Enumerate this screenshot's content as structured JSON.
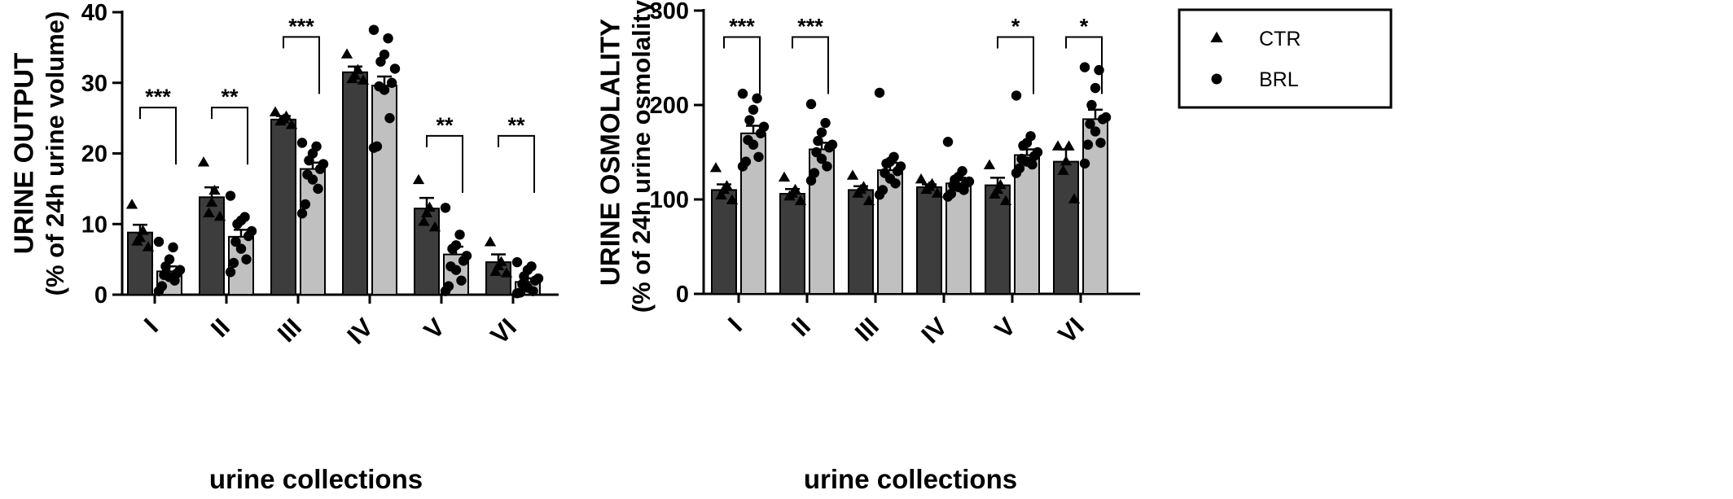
{
  "colors": {
    "ctr_bar": "#3d3d3d",
    "brl_bar": "#c0c0c0",
    "point": "#000000"
  },
  "legend": {
    "items": [
      {
        "label": "CTR",
        "marker": "triangle"
      },
      {
        "label": "BRL",
        "marker": "circle"
      }
    ]
  },
  "chart_data": [
    {
      "type": "bar",
      "title": "",
      "ylabel": "URINE OUTPUT",
      "ylabel_sub": "(% of 24h urine volume)",
      "xlabel": "urine collections",
      "ylim": [
        0,
        40
      ],
      "yticks": [
        "0",
        "10",
        "20",
        "30",
        "40"
      ],
      "categories": [
        "I",
        "II",
        "III",
        "IV",
        "V",
        "VI"
      ],
      "series": [
        {
          "name": "CTR",
          "values": [
            8.8,
            13.8,
            24.8,
            31.5,
            12.2,
            4.6
          ],
          "sem": [
            1.1,
            1.4,
            0.5,
            0.8,
            1.5,
            1.1
          ],
          "points": [
            [
              12.7,
              9.0,
              8.0,
              7.5,
              6.7
            ],
            [
              18.7,
              14.7,
              13.0,
              11.5,
              11.0
            ],
            [
              25.8,
              25.2,
              24.8,
              24.5,
              24.0
            ],
            [
              34.0,
              31.8,
              31.0,
              30.5,
              30.3
            ],
            [
              16.2,
              12.3,
              11.5,
              10.3,
              9.5
            ],
            [
              7.4,
              4.6,
              4.0,
              3.2,
              3.0
            ]
          ]
        },
        {
          "name": "BRL",
          "values": [
            3.3,
            8.2,
            17.8,
            29.6,
            5.7,
            1.8
          ],
          "sem": [
            0.7,
            1.0,
            0.9,
            1.3,
            1.1,
            0.5
          ],
          "points": [
            [
              7.5,
              6.7,
              5.0,
              4.0,
              3.5,
              3.0,
              2.8,
              2.5,
              2.0,
              1.2,
              0.5
            ],
            [
              14.0,
              11.0,
              10.5,
              10.0,
              9.0,
              8.3,
              7.5,
              6.5,
              5.0,
              4.5,
              3.2
            ],
            [
              21.5,
              21.0,
              20.0,
              19.0,
              18.5,
              17.8,
              17.0,
              16.3,
              15.0,
              12.8,
              11.5
            ],
            [
              37.5,
              36.3,
              34.0,
              33.0,
              32.0,
              30.0,
              29.5,
              29.0,
              25.0,
              21.0,
              20.8
            ],
            [
              12.3,
              8.5,
              7.0,
              6.5,
              5.5,
              4.8,
              4.0,
              3.5,
              2.0,
              1.2,
              0.5
            ],
            [
              4.6,
              4.0,
              3.5,
              2.6,
              2.3,
              2.0,
              1.5,
              1.0,
              0.5,
              0.3,
              0.2
            ]
          ]
        }
      ],
      "significance": [
        {
          "category": "I",
          "label": "***",
          "y": 26.5
        },
        {
          "category": "II",
          "label": "**",
          "y": 26.5
        },
        {
          "category": "III",
          "label": "***",
          "y": 36.5
        },
        {
          "category": "V",
          "label": "**",
          "y": 22.5
        },
        {
          "category": "VI",
          "label": "**",
          "y": 22.5
        }
      ]
    },
    {
      "type": "bar",
      "title": "",
      "ylabel": "URINE OSMOLALITY",
      "ylabel_sub": "(% of 24h urine osmolality)",
      "xlabel": "urine collections",
      "ylim": [
        0,
        300
      ],
      "yticks": [
        "0",
        "100",
        "200",
        "300"
      ],
      "categories": [
        "I",
        "II",
        "III",
        "IV",
        "V",
        "VI"
      ],
      "series": [
        {
          "name": "CTR",
          "values": [
            110,
            106,
            110,
            113,
            115,
            140
          ],
          "sem": [
            6,
            5,
            4,
            3,
            8,
            13
          ],
          "points": [
            [
              133,
              114,
              110,
              104,
              99
            ],
            [
              123,
              110,
              106,
              103,
              98
            ],
            [
              125,
              113,
              110,
              106,
              98
            ],
            [
              121,
              116,
              113,
              110,
              106
            ],
            [
              136,
              115,
              110,
              105,
              98
            ],
            [
              156,
              156,
              140,
              130,
              100
            ]
          ]
        },
        {
          "name": "BRL",
          "values": [
            170,
            153,
            131,
            117,
            147,
            185
          ],
          "sem": [
            8,
            7,
            8,
            6,
            6,
            10
          ],
          "points": [
            [
              212,
              207,
              195,
              184,
              177,
              170,
              163,
              158,
              145,
              140,
              135
            ],
            [
              201,
              181,
              171,
              162,
              158,
              155,
              150,
              143,
              135,
              128,
              120
            ],
            [
              213,
              145,
              140,
              138,
              135,
              130,
              128,
              122,
              117,
              110,
              105
            ],
            [
              161,
              130,
              124,
              121,
              119,
              117,
              115,
              113,
              110,
              106,
              103
            ],
            [
              210,
              167,
              160,
              157,
              150,
              146,
              143,
              140,
              137,
              133,
              128
            ],
            [
              240,
              237,
              218,
              200,
              187,
              185,
              180,
              172,
              160,
              158,
              138
            ]
          ]
        }
      ],
      "significance": [
        {
          "category": "I",
          "label": "***",
          "y": 272
        },
        {
          "category": "II",
          "label": "***",
          "y": 272
        },
        {
          "category": "V",
          "label": "*",
          "y": 272
        },
        {
          "category": "VI",
          "label": "*",
          "y": 272
        }
      ]
    }
  ]
}
